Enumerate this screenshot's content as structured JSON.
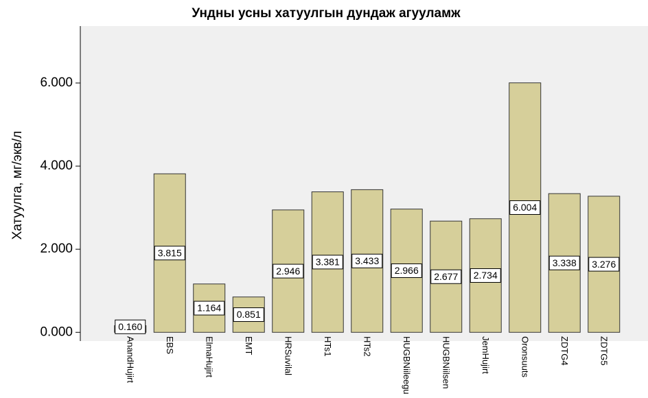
{
  "chart_data": {
    "type": "bar",
    "title": "Ундны усны хатуулгын дундаж агууламж",
    "y_label": "Хатуулга, мг/экв/л",
    "categories": [
      "AnandHujirt",
      "EBS",
      "ElmaHujirt",
      "EMT",
      "HRSuvilal",
      "HTs1",
      "HTs2",
      "HUGBNiileegu",
      "HUGBNiilsen",
      "JemHujirt",
      "Oronsuuts",
      "ZDTG4",
      "ZDTG5"
    ],
    "values": [
      0.16,
      3.815,
      1.164,
      0.851,
      2.946,
      3.381,
      3.433,
      2.966,
      2.677,
      2.734,
      6.004,
      3.338,
      3.276
    ],
    "value_labels": [
      "0.160",
      "3.815",
      "1.164",
      "0.851",
      "2.946",
      "3.381",
      "3.433",
      "2.966",
      "2.677",
      "2.734",
      "6.004",
      "3.338",
      "3.276"
    ],
    "color": "#d6cf9a",
    "ylim": [
      -0.21,
      7.37
    ],
    "yticks": [
      {
        "value": 0,
        "label": "0.000"
      },
      {
        "value": 2,
        "label": "2.000"
      },
      {
        "value": 4,
        "label": "4.000"
      },
      {
        "value": 6,
        "label": "6.000"
      }
    ]
  }
}
